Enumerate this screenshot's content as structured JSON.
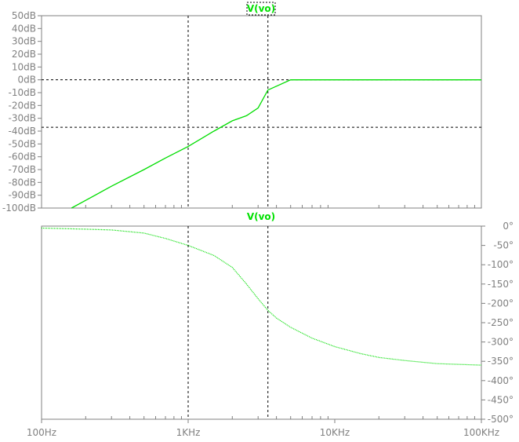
{
  "colors": {
    "trace": "#00dd00",
    "axis": "#808080",
    "cursor": "#000000",
    "background": "#ffffff"
  },
  "chart_data": [
    {
      "type": "line",
      "title": "V(vo)",
      "x_scale": "log",
      "xlim": [
        100,
        100000
      ],
      "ylim": [
        -100,
        50
      ],
      "y_unit": "dB",
      "y_tick_labels": [
        "50dB",
        "40dB",
        "30dB",
        "20dB",
        "10dB",
        "0dB",
        "-10dB",
        "-20dB",
        "-30dB",
        "-40dB",
        "-50dB",
        "-60dB",
        "-70dB",
        "-80dB",
        "-90dB",
        "-100dB"
      ],
      "y_tick_values": [
        50,
        40,
        30,
        20,
        10,
        0,
        -10,
        -20,
        -30,
        -40,
        -50,
        -60,
        -70,
        -80,
        -90,
        -100
      ],
      "series": [
        {
          "name": "V(vo)",
          "x": [
            160,
            200,
            300,
            500,
            700,
            1000,
            1500,
            2000,
            2500,
            3000,
            3500,
            5000,
            10000,
            20000,
            50000,
            100000
          ],
          "y": [
            -100,
            -94,
            -83,
            -70,
            -61,
            -52,
            -40,
            -32,
            -28,
            -22,
            -8,
            0,
            0,
            0,
            0,
            0
          ]
        }
      ],
      "cursors": {
        "vertical_x": [
          1000,
          3500
        ],
        "horizontal_y": [
          0,
          -37
        ]
      }
    },
    {
      "type": "line",
      "title": "V(vo)",
      "x_scale": "log",
      "xlim": [
        100,
        100000
      ],
      "ylim": [
        -500,
        0
      ],
      "y_unit": "°",
      "y_tick_labels": [
        "0°",
        "-50°",
        "-100°",
        "-150°",
        "-200°",
        "-250°",
        "-300°",
        "-350°",
        "-400°",
        "-450°",
        "-500°"
      ],
      "y_tick_values": [
        0,
        -50,
        -100,
        -150,
        -200,
        -250,
        -300,
        -350,
        -400,
        -450,
        -500
      ],
      "x_tick_labels": [
        "100Hz",
        "1KHz",
        "10KHz",
        "100KHz"
      ],
      "x_tick_values": [
        100,
        1000,
        10000,
        100000
      ],
      "series": [
        {
          "name": "V(vo)",
          "x": [
            100,
            200,
            300,
            500,
            700,
            1000,
            1500,
            2000,
            2500,
            3000,
            3500,
            4000,
            5000,
            7000,
            10000,
            15000,
            20000,
            30000,
            50000,
            100000
          ],
          "y": [
            -5,
            -8,
            -10,
            -18,
            -32,
            -50,
            -76,
            -107,
            -150,
            -188,
            -218,
            -238,
            -262,
            -290,
            -312,
            -330,
            -340,
            -348,
            -356,
            -360
          ]
        }
      ],
      "cursors": {
        "vertical_x": [
          1000,
          3500
        ]
      }
    }
  ]
}
